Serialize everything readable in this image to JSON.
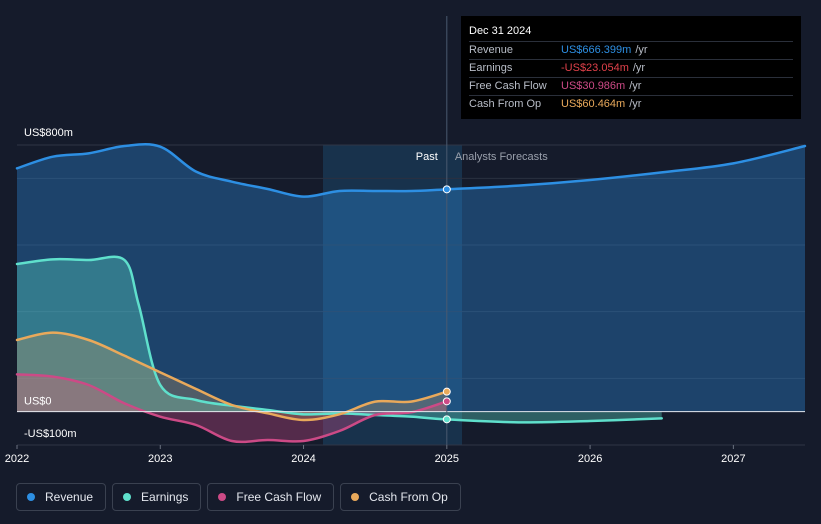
{
  "colors": {
    "revenue": "#2d8fe3",
    "earnings": "#5fe0cc",
    "free_cash_flow": "#cc4a86",
    "cash_from_op": "#e9a95b",
    "background": "#151b2b"
  },
  "tooltip": {
    "date": "Dec 31 2024",
    "rows": [
      {
        "label": "Revenue",
        "value": "US$666.399m",
        "unit": "/yr",
        "color": "#2d8fe3"
      },
      {
        "label": "Earnings",
        "value": "-US$23.054m",
        "unit": "/yr",
        "color": "#e0414a"
      },
      {
        "label": "Free Cash Flow",
        "value": "US$30.986m",
        "unit": "/yr",
        "color": "#cc4a86"
      },
      {
        "label": "Cash From Op",
        "value": "US$60.464m",
        "unit": "/yr",
        "color": "#e9a95b"
      }
    ]
  },
  "legend": [
    {
      "label": "Revenue",
      "color": "#2d8fe3"
    },
    {
      "label": "Earnings",
      "color": "#5fe0cc"
    },
    {
      "label": "Free Cash Flow",
      "color": "#cc4a86"
    },
    {
      "label": "Cash From Op",
      "color": "#e9a95b"
    }
  ],
  "chart_data": {
    "type": "area",
    "y_tick_labels": [
      "US$800m",
      "US$0",
      "-US$100m"
    ],
    "y_tick_values": [
      800,
      0,
      -100
    ],
    "ylim": [
      -100,
      800
    ],
    "xlim": [
      2022.0,
      2027.5
    ],
    "x_tick_labels": [
      "2022",
      "2023",
      "2024",
      "2025",
      "2026",
      "2027"
    ],
    "x_tick_values": [
      2022,
      2023,
      2024,
      2025,
      2026,
      2027
    ],
    "past_label": "Past",
    "forecast_label": "Analysts Forecasts",
    "divider_x": 2025.0,
    "grid": true,
    "series": [
      {
        "name": "Revenue",
        "x": [
          2022.0,
          2022.25,
          2022.5,
          2022.75,
          2023.0,
          2023.25,
          2023.5,
          2023.75,
          2024.0,
          2024.25,
          2024.5,
          2024.75,
          2025.0,
          2025.5,
          2026.0,
          2026.5,
          2027.0,
          2027.5
        ],
        "y": [
          730,
          765,
          775,
          797,
          795,
          720,
          690,
          668,
          645,
          662,
          662,
          662,
          667,
          678,
          695,
          718,
          745,
          797
        ]
      },
      {
        "name": "Earnings",
        "x": [
          2022.0,
          2022.25,
          2022.5,
          2022.75,
          2022.85,
          2023.0,
          2023.25,
          2023.5,
          2023.75,
          2024.0,
          2024.25,
          2024.5,
          2024.75,
          2025.0,
          2025.5,
          2026.0,
          2026.5
        ],
        "y": [
          443,
          457,
          455,
          455,
          320,
          80,
          35,
          18,
          5,
          -8,
          -5,
          -10,
          -15,
          -23,
          -32,
          -28,
          -20
        ]
      },
      {
        "name": "Free Cash Flow",
        "x": [
          2022.0,
          2022.25,
          2022.5,
          2022.75,
          2023.0,
          2023.25,
          2023.5,
          2023.75,
          2024.0,
          2024.25,
          2024.5,
          2024.75,
          2025.0
        ],
        "y": [
          112,
          105,
          80,
          25,
          -15,
          -40,
          -88,
          -85,
          -88,
          -58,
          -10,
          -2,
          31
        ]
      },
      {
        "name": "Cash From Op",
        "x": [
          2022.0,
          2022.25,
          2022.5,
          2022.75,
          2023.0,
          2023.25,
          2023.5,
          2023.75,
          2024.0,
          2024.25,
          2024.5,
          2024.75,
          2025.0
        ],
        "y": [
          215,
          237,
          215,
          168,
          118,
          68,
          20,
          -5,
          -25,
          -8,
          30,
          30,
          60
        ]
      }
    ]
  }
}
